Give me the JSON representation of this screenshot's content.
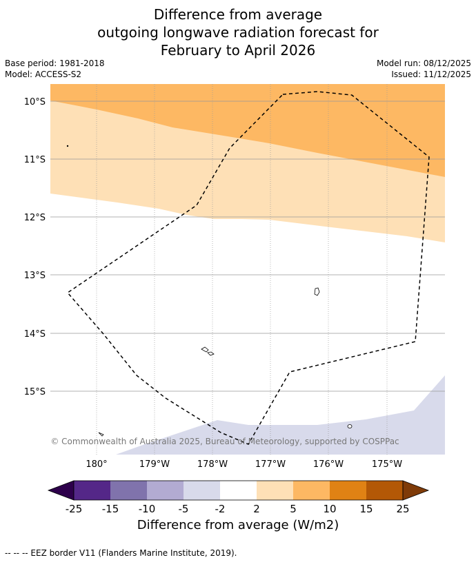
{
  "title": {
    "line1": "Difference from average",
    "line2": "outgoing longwave radiation forecast for",
    "line3": "February to April 2026"
  },
  "meta": {
    "base_period": "Base period: 1981-2018",
    "model": "Model: ACCESS-S2",
    "model_run": "Model run: 08/12/2025",
    "issued": "Issued: 11/12/2025"
  },
  "map": {
    "lat_labels": [
      "10°S",
      "11°S",
      "12°S",
      "13°S",
      "14°S",
      "15°S"
    ],
    "lon_labels": [
      "180°",
      "179°W",
      "178°W",
      "177°W",
      "176°W",
      "175°W"
    ],
    "copyright": "© Commonwealth of Australia 2025, Bureau of Meteorology, supported by COSPPac",
    "colors": {
      "band_5_10": "#fdb863",
      "band_2_5": "#fee0b6",
      "band_neg5_neg2": "#d8daeb",
      "grid": "#999999",
      "eez": "#000000"
    }
  },
  "colorbar": {
    "tick_labels": [
      "-25",
      "-15",
      "-10",
      "-5",
      "-2",
      "2",
      "5",
      "10",
      "15",
      "25"
    ],
    "colors": [
      "#2d004b",
      "#542788",
      "#8073ac",
      "#b2abd2",
      "#d8daeb",
      "#ffffff",
      "#fee0b6",
      "#fdb863",
      "#e08214",
      "#b35806",
      "#7f3b08"
    ],
    "title": "Difference from average (W/m2)"
  },
  "legend_note": "--  --  -- EEZ border V11 (Flanders Marine Institute, 2019)."
}
